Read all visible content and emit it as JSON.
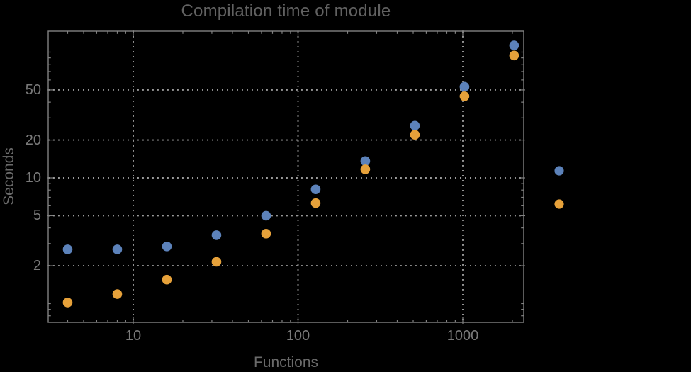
{
  "chart_data": {
    "type": "scatter",
    "title": "Compilation time of module",
    "xlabel": "Functions",
    "ylabel": "Seconds",
    "x_scale": "log",
    "y_scale": "log",
    "x": [
      4,
      8,
      16,
      32,
      64,
      128,
      256,
      512,
      1024,
      2048
    ],
    "series": [
      {
        "name": "blue-series",
        "label": "",
        "color": "#5C82BA",
        "values": [
          2.7,
          2.7,
          2.85,
          3.5,
          5.0,
          8.1,
          13.6,
          26,
          53,
          113
        ]
      },
      {
        "name": "orange-series",
        "label": "",
        "color": "#E6A13A",
        "values": [
          1.02,
          1.19,
          1.55,
          2.15,
          3.6,
          6.3,
          11.7,
          22,
          44.5,
          94
        ]
      }
    ],
    "x_ticks": [
      10,
      100,
      1000
    ],
    "y_ticks": [
      2,
      5,
      10,
      20,
      50
    ],
    "x_range": [
      3.05,
      2340
    ],
    "y_range": [
      0.71,
      147
    ],
    "grid": "dotted",
    "legend": {
      "position": "right-of-plot",
      "markers": [
        {
          "series": "blue-series",
          "label": ""
        },
        {
          "series": "orange-series",
          "label": ""
        }
      ]
    },
    "style": {
      "background": "#000000",
      "frame": "#828282",
      "gridline": "#9B9B9B",
      "tick_label": "#7A7A7A",
      "axis_label": "#6A6A6A",
      "title": "#616161"
    }
  }
}
